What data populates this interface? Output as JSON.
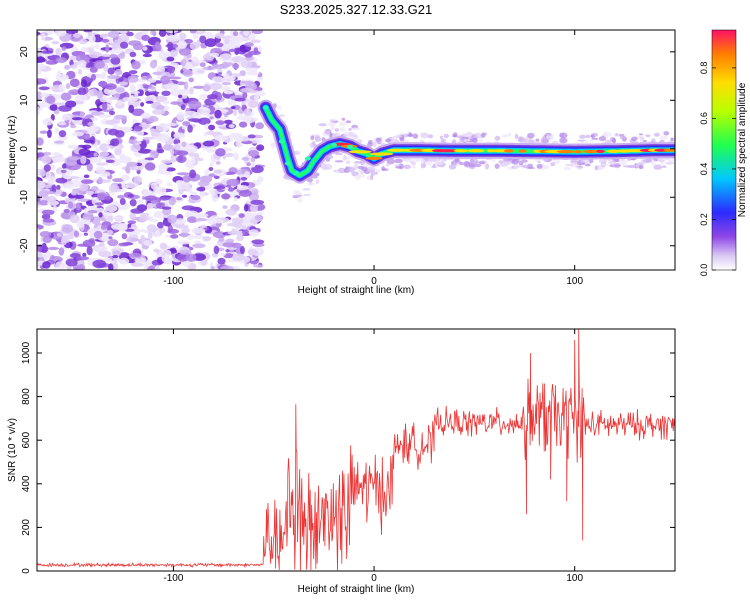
{
  "title": "S233.2025.327.12.33.G21",
  "chart_data": [
    {
      "type": "heatmap",
      "xlabel": "Height of straight line (km)",
      "ylabel": "Frequency (Hz)",
      "xlim": [
        -168,
        150
      ],
      "ylim": [
        -25,
        24.5
      ],
      "x_ticks": [
        -100,
        0,
        100
      ],
      "y_ticks": [
        -20,
        -10,
        0,
        10,
        20
      ],
      "noise_region": {
        "x_start": -168,
        "x_end": -58
      },
      "ridge": [
        {
          "x": -54,
          "y": 8.5
        },
        {
          "x": -51,
          "y": 6
        },
        {
          "x": -47,
          "y": 4
        },
        {
          "x": -45,
          "y": 1
        },
        {
          "x": -43,
          "y": -2
        },
        {
          "x": -41,
          "y": -4.5
        },
        {
          "x": -37,
          "y": -5.5
        },
        {
          "x": -33,
          "y": -4.5
        },
        {
          "x": -30,
          "y": -2.5
        },
        {
          "x": -26,
          "y": -0.5
        },
        {
          "x": -22,
          "y": 0.5
        },
        {
          "x": -17,
          "y": 1
        },
        {
          "x": -12,
          "y": 0.5
        },
        {
          "x": -8,
          "y": -0.5
        },
        {
          "x": -4,
          "y": -1
        },
        {
          "x": 0,
          "y": -2
        },
        {
          "x": 4,
          "y": -1
        },
        {
          "x": 10,
          "y": -0.3
        },
        {
          "x": 20,
          "y": -0.3
        },
        {
          "x": 40,
          "y": -0.4
        },
        {
          "x": 60,
          "y": -0.4
        },
        {
          "x": 80,
          "y": -0.5
        },
        {
          "x": 100,
          "y": -0.6
        },
        {
          "x": 120,
          "y": -0.5
        },
        {
          "x": 140,
          "y": -0.3
        },
        {
          "x": 150,
          "y": -0.3
        }
      ],
      "colorbar": {
        "label": "Normalized spectral amplitude",
        "range": [
          0,
          0.95
        ],
        "ticks": [
          0.0,
          0.2,
          0.4,
          0.6,
          0.8
        ]
      }
    },
    {
      "type": "line",
      "xlabel": "Height of straight line (km)",
      "ylabel": "SNR (10 * v/v)",
      "xlim": [
        -168,
        150
      ],
      "ylim": [
        0,
        1110
      ],
      "x_ticks": [
        -100,
        0,
        100
      ],
      "y_ticks": [
        0,
        200,
        400,
        600,
        800,
        1000
      ],
      "color": "#ee3333",
      "series": [
        {
          "name": "SNR",
          "segments": [
            {
              "x_start": -168,
              "x_end": -55,
              "mean": 28,
              "jitter": 10
            },
            {
              "x_start": -55,
              "x_end": -43,
              "mean": 150,
              "jitter": 230
            },
            {
              "x_start": -43,
              "x_end": -35,
              "mean": 300,
              "jitter": 420
            },
            {
              "x_start": -35,
              "x_end": -12,
              "mean": 250,
              "jitter": 340
            },
            {
              "x_start": -12,
              "x_end": 10,
              "mean": 380,
              "jitter": 220
            },
            {
              "x_start": 10,
              "x_end": 30,
              "mean": 580,
              "jitter": 120
            },
            {
              "x_start": 30,
              "x_end": 75,
              "mean": 680,
              "jitter": 80
            },
            {
              "x_start": 75,
              "x_end": 105,
              "mean": 700,
              "jitter": 220
            },
            {
              "x_start": 105,
              "x_end": 150,
              "mean": 670,
              "jitter": 80
            }
          ],
          "spikes": [
            {
              "x": -39,
              "y": 765
            },
            {
              "x": 76,
              "y": 260
            },
            {
              "x": 78,
              "y": 1000
            },
            {
              "x": 85,
              "y": 860
            },
            {
              "x": 88,
              "y": 420
            },
            {
              "x": 100,
              "y": 1060
            },
            {
              "x": 102,
              "y": 1110
            },
            {
              "x": 104,
              "y": 140
            },
            {
              "x": 96,
              "y": 320
            }
          ]
        }
      ]
    }
  ]
}
